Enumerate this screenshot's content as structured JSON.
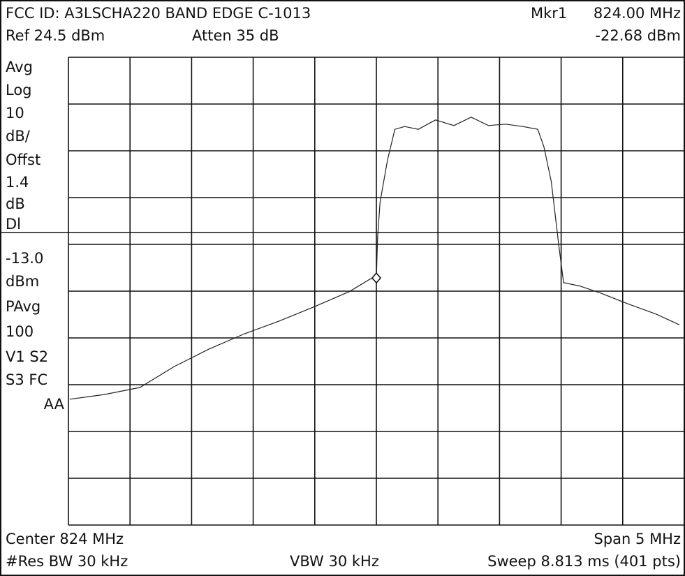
{
  "chart_data": {
    "type": "line",
    "title": "FCC ID: A3LSCHA220 BAND EDGE C-1013",
    "marker_label": "Mkr1",
    "marker_freq_label": "824.00 MHz",
    "marker_level_label": "-22.68 dBm",
    "ref_label": "Ref 24.5 dBm",
    "atten_label": "Atten 35 dB",
    "sidebar": [
      "Avg",
      "Log",
      "10",
      "dB/",
      "Offst",
      "1.4",
      "dB",
      "Dl",
      "-13.0",
      "dBm",
      "PAvg",
      "100",
      "V1  S2",
      "S3  FC",
      "AA"
    ],
    "center_label": "Center 824 MHz",
    "span_label": "Span 5 MHz",
    "rbw_label": "#Res BW 30 kHz",
    "vbw_label": "VBW 30  kHz",
    "sweep_label": "Sweep 8.813 ms (401 pts)",
    "xlim": [
      821.5,
      826.5
    ],
    "ylim": [
      -75.5,
      24.5
    ],
    "xticks": [
      821.5,
      822,
      822.5,
      823,
      823.5,
      824,
      824.5,
      825,
      825.5,
      826,
      826.5
    ],
    "yticks": [
      24.5,
      14.5,
      4.5,
      -5.5,
      -15.5,
      -25.5,
      -35.5,
      -45.5,
      -55.5,
      -65.5,
      -75.5
    ],
    "grid": true,
    "display_line": -13,
    "marker": {
      "x": 824,
      "y": -22.68
    },
    "series": [
      {
        "color": "#222222",
        "x": [
          821.51,
          821.79,
          822.08,
          822.36,
          822.64,
          822.93,
          823.21,
          823.49,
          823.78,
          823.95,
          824.0,
          824.01,
          824.03,
          824.09,
          824.15,
          824.23,
          824.34,
          824.48,
          824.63,
          824.77,
          824.91,
          825.05,
          825.19,
          825.31,
          825.36,
          825.42,
          825.48,
          825.52,
          825.65,
          825.82,
          826.04,
          826.27,
          826.46
        ],
        "values": [
          -48.6,
          -47.6,
          -46.1,
          -41.6,
          -37.9,
          -34.6,
          -31.9,
          -28.9,
          -25.6,
          -22.9,
          -22.7,
          -13.9,
          -6.5,
          2.5,
          9.1,
          9.7,
          9.1,
          11.1,
          9.9,
          11.7,
          9.9,
          10.2,
          9.7,
          9.1,
          5.4,
          -2.1,
          -15.5,
          -23.7,
          -24.4,
          -25.9,
          -28.2,
          -30.4,
          -32.7
        ]
      }
    ]
  }
}
